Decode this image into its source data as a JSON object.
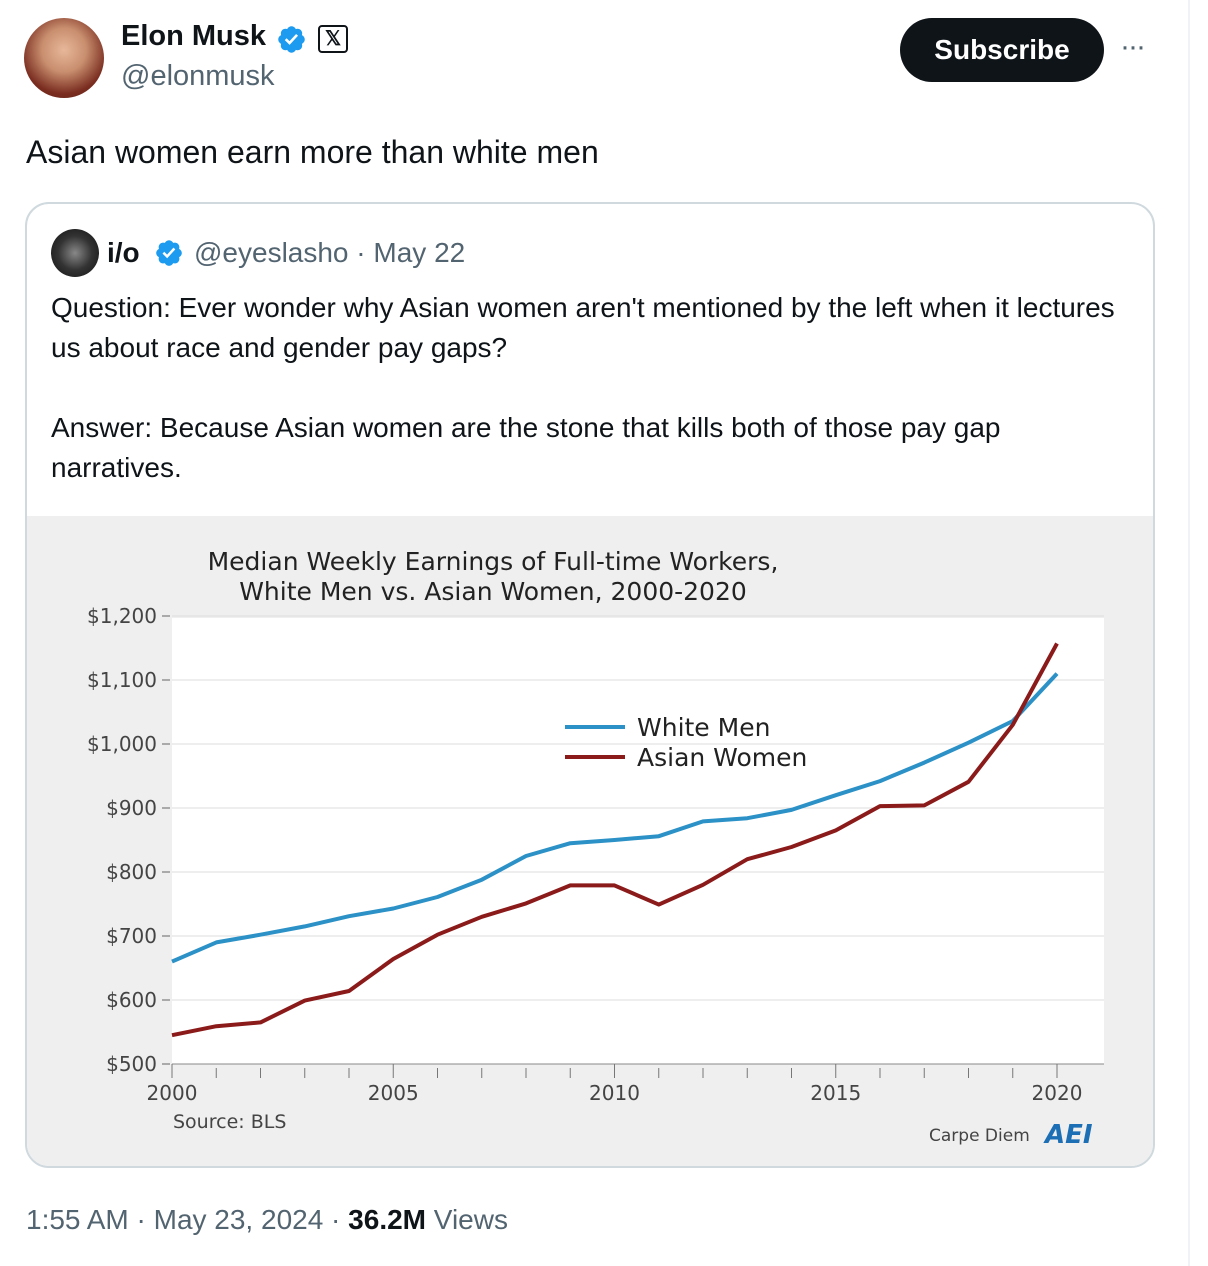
{
  "tweet": {
    "author_name": "Elon Musk",
    "author_handle": "@elonmusk",
    "x_badge": "𝕏",
    "subscribe_label": "Subscribe",
    "more_label": "···",
    "text": "Asian women earn more than white men",
    "timestamp": "1:55 AM · May 23, 2024 · ",
    "views_count": "36.2M",
    "views_label": " Views",
    "colors": {
      "verified": "#1d9bf0",
      "button": "#0f1419"
    }
  },
  "quote": {
    "author_name": "i/o",
    "author_handle": "@eyeslasho · May 22",
    "text": "Question: Ever wonder why Asian women aren't mentioned by the left when it lectures us about race and gender pay gaps?\n\nAnswer: Because Asian women are the stone that kills both of those pay gap narratives."
  },
  "chart_data": {
    "type": "line",
    "title_line1": "Median Weekly Earnings of Full-time Workers,",
    "title_line2": "White Men vs. Asian Women, 2000-2020",
    "source": "Source: BLS",
    "credit": "Carpe Diem",
    "credit_logo": "AEI",
    "x": [
      2000,
      2001,
      2002,
      2003,
      2004,
      2005,
      2006,
      2007,
      2008,
      2009,
      2010,
      2011,
      2012,
      2013,
      2014,
      2015,
      2016,
      2017,
      2018,
      2019,
      2020
    ],
    "xticks": [
      2000,
      2005,
      2010,
      2015,
      2020
    ],
    "xtick_labels": [
      "2000",
      "2005",
      "2010",
      "2015",
      "2020"
    ],
    "ylim": [
      500,
      1200
    ],
    "yticks": [
      500,
      600,
      700,
      800,
      900,
      1000,
      1100,
      1200
    ],
    "ytick_labels": [
      "$500",
      "$600",
      "$700",
      "$800",
      "$900",
      "$1,000",
      "$1,100",
      "$1,200"
    ],
    "legend_position": "upper-center",
    "series": [
      {
        "name": "White Men",
        "color": "#2b91c6",
        "values": [
          660,
          690,
          702,
          715,
          731,
          743,
          761,
          788,
          825,
          845,
          850,
          856,
          879,
          884,
          897,
          920,
          942,
          971,
          1002,
          1036,
          1110
        ]
      },
      {
        "name": "Asian Women",
        "color": "#8b1a1a",
        "values": [
          545,
          559,
          565,
          599,
          614,
          664,
          702,
          730,
          751,
          779,
          779,
          749,
          780,
          820,
          839,
          865,
          903,
          904,
          941,
          1030,
          1157
        ]
      }
    ]
  }
}
